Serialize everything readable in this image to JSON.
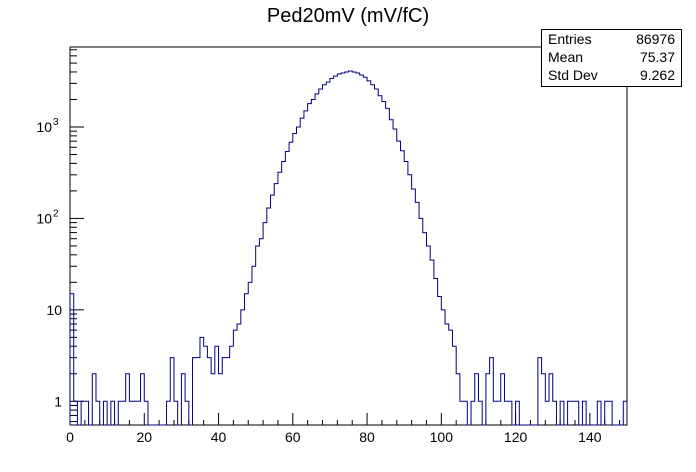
{
  "chart_data": {
    "type": "histogram",
    "title": "Ped20mV (mV/fC)",
    "xlabel": "",
    "ylabel": "",
    "xlim": [
      0,
      150
    ],
    "ylim": [
      0.55,
      7500
    ],
    "yscale": "log",
    "bin_width": 1,
    "x_ticks": [
      0,
      20,
      40,
      60,
      80,
      100,
      120,
      140
    ],
    "y_ticks": [
      {
        "value": 1,
        "label": "1"
      },
      {
        "value": 10,
        "label": "10"
      },
      {
        "value": 100,
        "label": "10",
        "exp": "2"
      },
      {
        "value": 1000,
        "label": "10",
        "exp": "3"
      }
    ],
    "line_color": "#000080",
    "stats": {
      "entries_label": "Entries",
      "entries": "86976",
      "mean_label": "Mean",
      "mean": "75.37",
      "std_label": "Std Dev",
      "std": "9.262"
    },
    "bins": [
      [
        0,
        15
      ],
      [
        1,
        1
      ],
      [
        2,
        0
      ],
      [
        3,
        1
      ],
      [
        4,
        1
      ],
      [
        5,
        0
      ],
      [
        6,
        2
      ],
      [
        7,
        1
      ],
      [
        8,
        0
      ],
      [
        9,
        1
      ],
      [
        10,
        0
      ],
      [
        11,
        1
      ],
      [
        12,
        0
      ],
      [
        13,
        1
      ],
      [
        14,
        1
      ],
      [
        15,
        2
      ],
      [
        16,
        1
      ],
      [
        17,
        1
      ],
      [
        18,
        1
      ],
      [
        19,
        2
      ],
      [
        20,
        1
      ],
      [
        21,
        0
      ],
      [
        22,
        0
      ],
      [
        23,
        0
      ],
      [
        24,
        0
      ],
      [
        25,
        0
      ],
      [
        26,
        1
      ],
      [
        27,
        3
      ],
      [
        28,
        1
      ],
      [
        29,
        0
      ],
      [
        30,
        2
      ],
      [
        31,
        1
      ],
      [
        32,
        0
      ],
      [
        33,
        3
      ],
      [
        34,
        3
      ],
      [
        35,
        5
      ],
      [
        36,
        4
      ],
      [
        37,
        3
      ],
      [
        38,
        2
      ],
      [
        39,
        4
      ],
      [
        40,
        2
      ],
      [
        41,
        3
      ],
      [
        42,
        3
      ],
      [
        43,
        4
      ],
      [
        44,
        6
      ],
      [
        45,
        7
      ],
      [
        46,
        10
      ],
      [
        47,
        15
      ],
      [
        48,
        20
      ],
      [
        49,
        30
      ],
      [
        50,
        50
      ],
      [
        51,
        60
      ],
      [
        52,
        90
      ],
      [
        53,
        130
      ],
      [
        54,
        180
      ],
      [
        55,
        240
      ],
      [
        56,
        320
      ],
      [
        57,
        420
      ],
      [
        58,
        540
      ],
      [
        59,
        680
      ],
      [
        60,
        850
      ],
      [
        61,
        1000
      ],
      [
        62,
        1250
      ],
      [
        63,
        1500
      ],
      [
        64,
        1800
      ],
      [
        65,
        2000
      ],
      [
        66,
        2300
      ],
      [
        67,
        2600
      ],
      [
        68,
        2900
      ],
      [
        69,
        3100
      ],
      [
        70,
        3400
      ],
      [
        71,
        3600
      ],
      [
        72,
        3800
      ],
      [
        73,
        3900
      ],
      [
        74,
        4000
      ],
      [
        75,
        4100
      ],
      [
        76,
        4000
      ],
      [
        77,
        3900
      ],
      [
        78,
        3700
      ],
      [
        79,
        3500
      ],
      [
        80,
        3200
      ],
      [
        81,
        2900
      ],
      [
        82,
        2600
      ],
      [
        83,
        2200
      ],
      [
        84,
        1900
      ],
      [
        85,
        1600
      ],
      [
        86,
        1200
      ],
      [
        87,
        950
      ],
      [
        88,
        700
      ],
      [
        89,
        550
      ],
      [
        90,
        420
      ],
      [
        91,
        300
      ],
      [
        92,
        210
      ],
      [
        93,
        150
      ],
      [
        94,
        100
      ],
      [
        95,
        70
      ],
      [
        96,
        50
      ],
      [
        97,
        35
      ],
      [
        98,
        22
      ],
      [
        99,
        14
      ],
      [
        100,
        10
      ],
      [
        101,
        7
      ],
      [
        102,
        6
      ],
      [
        103,
        4
      ],
      [
        104,
        2
      ],
      [
        105,
        1
      ],
      [
        106,
        1
      ],
      [
        107,
        0
      ],
      [
        108,
        1
      ],
      [
        109,
        2
      ],
      [
        110,
        1
      ],
      [
        111,
        0
      ],
      [
        112,
        2
      ],
      [
        113,
        3
      ],
      [
        114,
        1
      ],
      [
        115,
        1
      ],
      [
        116,
        2
      ],
      [
        117,
        1
      ],
      [
        118,
        1
      ],
      [
        119,
        0
      ],
      [
        120,
        1
      ],
      [
        121,
        0
      ],
      [
        122,
        0
      ],
      [
        123,
        0
      ],
      [
        124,
        0
      ],
      [
        125,
        0
      ],
      [
        126,
        3
      ],
      [
        127,
        2
      ],
      [
        128,
        1
      ],
      [
        129,
        2
      ],
      [
        130,
        1
      ],
      [
        131,
        0
      ],
      [
        132,
        1
      ],
      [
        133,
        0
      ],
      [
        134,
        1
      ],
      [
        135,
        1
      ],
      [
        136,
        1
      ],
      [
        137,
        0
      ],
      [
        138,
        1
      ],
      [
        139,
        0
      ],
      [
        140,
        0
      ],
      [
        141,
        0
      ],
      [
        142,
        1
      ],
      [
        143,
        0
      ],
      [
        144,
        1
      ],
      [
        145,
        1
      ],
      [
        146,
        0
      ],
      [
        147,
        0
      ],
      [
        148,
        0
      ],
      [
        149,
        1
      ]
    ]
  }
}
